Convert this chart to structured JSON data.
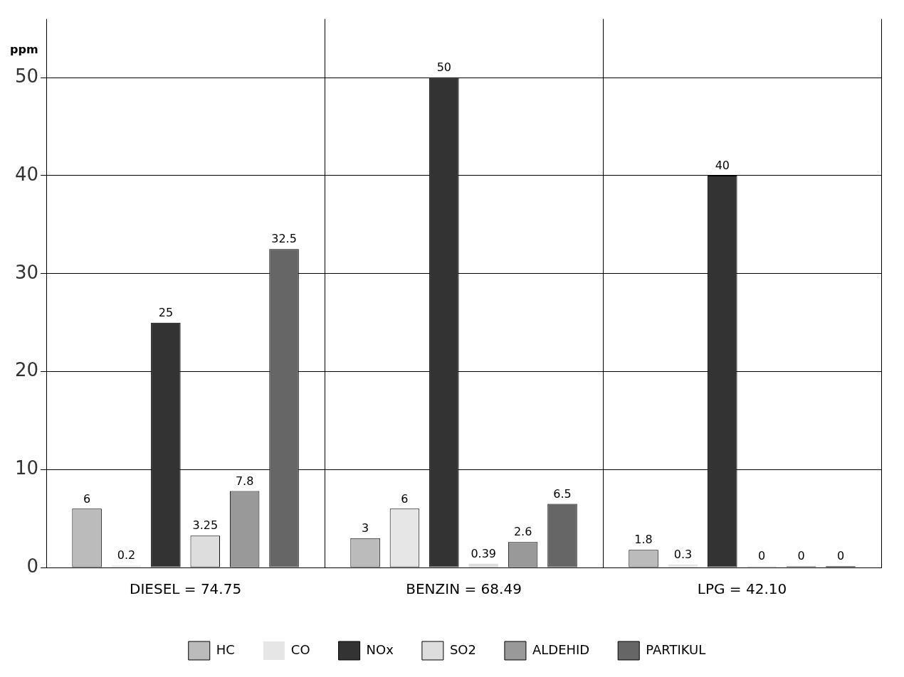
{
  "chart_data": {
    "type": "bar",
    "ylabel": "ppm",
    "categories": [
      "DIESEL = 74.75",
      "BENZIN = 68.49",
      "LPG = 42.10"
    ],
    "series": [
      {
        "name": "HC",
        "color": "#bbbbbb",
        "values": [
          6,
          3,
          1.8
        ]
      },
      {
        "name": "CO",
        "color": "#e6e6e6",
        "values": [
          0.2,
          6,
          0.3
        ]
      },
      {
        "name": "NOx",
        "color": "#333333",
        "values": [
          25,
          50,
          40
        ]
      },
      {
        "name": "SO2",
        "color": "#dddddd",
        "values": [
          3.25,
          0.39,
          0
        ]
      },
      {
        "name": "ALDEHID",
        "color": "#999999",
        "values": [
          7.8,
          2.6,
          0
        ]
      },
      {
        "name": "PARTIKUL",
        "color": "#666666",
        "values": [
          32.5,
          6.5,
          0
        ]
      }
    ],
    "ylim": [
      0,
      56
    ],
    "yticks": [
      0,
      10,
      20,
      30,
      40,
      50
    ],
    "grid": true,
    "legend": "bottom",
    "data_labels": true
  }
}
